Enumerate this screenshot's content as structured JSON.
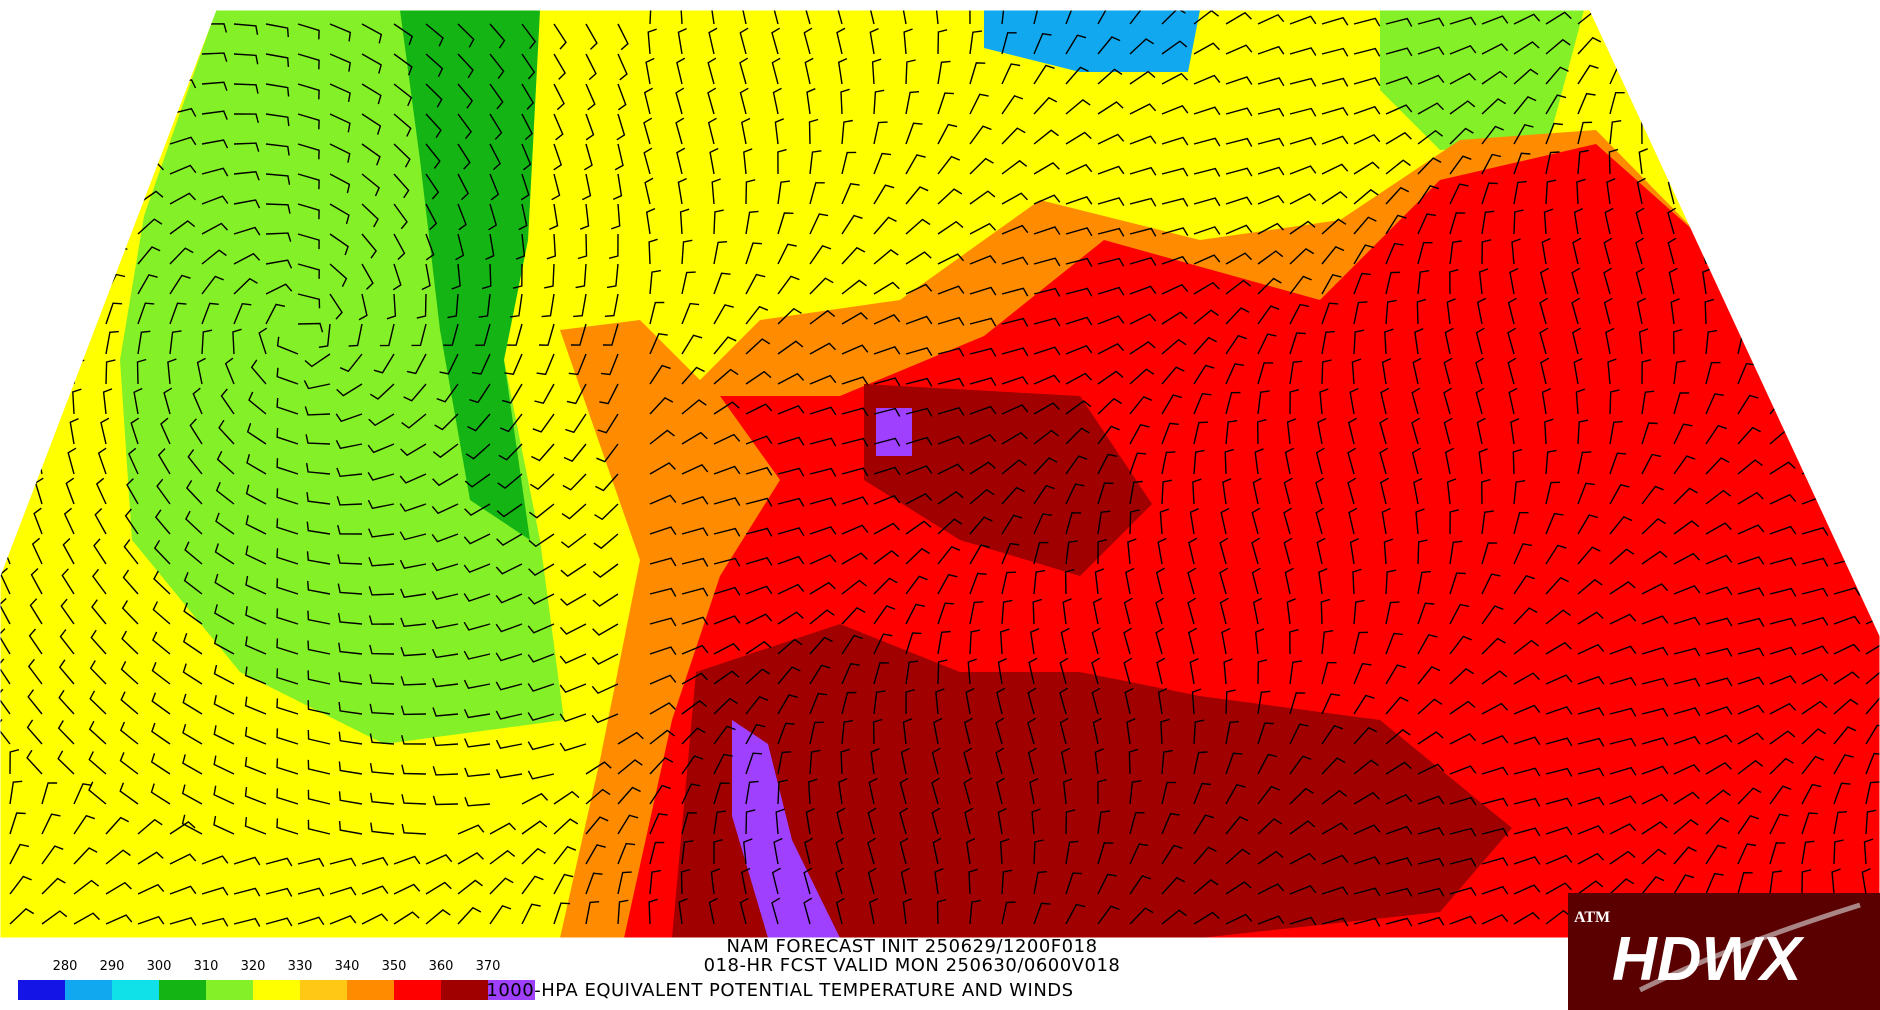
{
  "title_lines": [
    "NAM FORECAST INIT 250629/1200F018",
    "018-HR FCST VALID MON 250630/0600V018",
    "1000-HPA EQUIVALENT POTENTIAL TEMPERATURE AND WINDS"
  ],
  "colorbar": {
    "ticks": [
      280,
      290,
      300,
      310,
      320,
      330,
      340,
      350,
      360,
      370
    ],
    "colors": [
      "#1414e6",
      "#12a8f0",
      "#10e0e8",
      "#14b414",
      "#84f028",
      "#ffff00",
      "#ffc814",
      "#ff8c00",
      "#ff0000",
      "#a00000",
      "#a040ff"
    ]
  },
  "logo": {
    "emblem": "ATM",
    "text": "HDWX"
  }
}
